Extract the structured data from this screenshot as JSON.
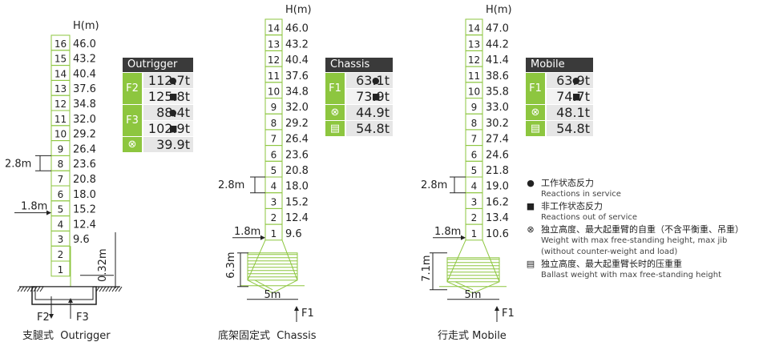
{
  "colors": {
    "green": "#8dc63f",
    "dark": "#3a3a3a",
    "gray": "#e6e6e6"
  },
  "axis_label": "H(m)",
  "outrigger": {
    "heights": [
      "46.0",
      "43.2",
      "40.4",
      "37.6",
      "34.8",
      "32.0",
      "29.2",
      "26.4",
      "23.6",
      "20.8",
      "18.0",
      "15.2",
      "12.4",
      "9.6"
    ],
    "sections": [
      "16",
      "15",
      "14",
      "13",
      "12",
      "11",
      "10",
      "9",
      "8",
      "7",
      "6",
      "5",
      "4",
      "3",
      "2",
      "1"
    ],
    "dim_section": "2.8m",
    "dim_base": "1.8m",
    "dim_foot": "0.32m",
    "f2": "F2",
    "f3": "F3",
    "caption_zh": "支腿式",
    "caption_en": "Outrigger",
    "table": {
      "title": "Outrigger",
      "f2": "F2",
      "f3": "F3",
      "f2_a": "112.7t",
      "f2_b": "125.8t",
      "f3_a": "88.4t",
      "f3_b": "102.9t",
      "self": "39.9t"
    }
  },
  "chassis": {
    "heights": [
      "46.0",
      "43.2",
      "40.4",
      "37.6",
      "34.8",
      "32.0",
      "29.2",
      "26.4",
      "23.6",
      "20.8",
      "18.0",
      "15.2",
      "12.4",
      "9.6"
    ],
    "sections": [
      "14",
      "13",
      "12",
      "11",
      "10",
      "9",
      "8",
      "7",
      "6",
      "5",
      "4",
      "3",
      "2",
      "1"
    ],
    "dim_section": "2.8m",
    "dim_base": "1.8m",
    "dim_height": "6.3m",
    "dim_width": "5m",
    "f1": "F1",
    "caption_zh": "底架固定式",
    "caption_en": "Chassis",
    "table": {
      "title": "Chassis",
      "f1": "F1",
      "a": "63.1t",
      "b": "73.9t",
      "self": "44.9t",
      "ballast": "54.8t"
    }
  },
  "mobile": {
    "heights": [
      "47.0",
      "44.2",
      "41.4",
      "38.6",
      "35.8",
      "33.0",
      "30.2",
      "27.4",
      "24.6",
      "21.8",
      "19.0",
      "16.2",
      "13.4",
      "10.6"
    ],
    "sections": [
      "14",
      "13",
      "12",
      "11",
      "10",
      "9",
      "8",
      "7",
      "6",
      "5",
      "4",
      "3",
      "2",
      "1"
    ],
    "dim_section": "2.8m",
    "dim_base": "1.8m",
    "dim_height": "7.1m",
    "dim_width": "5m",
    "f1": "F1",
    "caption_zh": "行走式",
    "caption_en": "Mobile",
    "table": {
      "title": "Mobile",
      "f1": "F1",
      "a": "63.9t",
      "b": "74.7t",
      "self": "48.1t",
      "ballast": "54.8t"
    }
  },
  "legend": [
    {
      "icon": "dot-icon",
      "zh": "工作状态反力",
      "en": "Reactions in service"
    },
    {
      "icon": "square-icon",
      "zh": "非工作状态反力",
      "en": "Reactions out of service"
    },
    {
      "icon": "weight-icon",
      "zh": "独立高度、最大起重臂的自重（不含平衡重、吊重）",
      "en": "Weight  with max free-standing height, max jib",
      "en2": "(without counter-weight and load)"
    },
    {
      "icon": "ballast-icon",
      "zh": "独立高度、最大起重臂长时的压重重",
      "en": "Ballast weight with  max free-standing height"
    }
  ]
}
